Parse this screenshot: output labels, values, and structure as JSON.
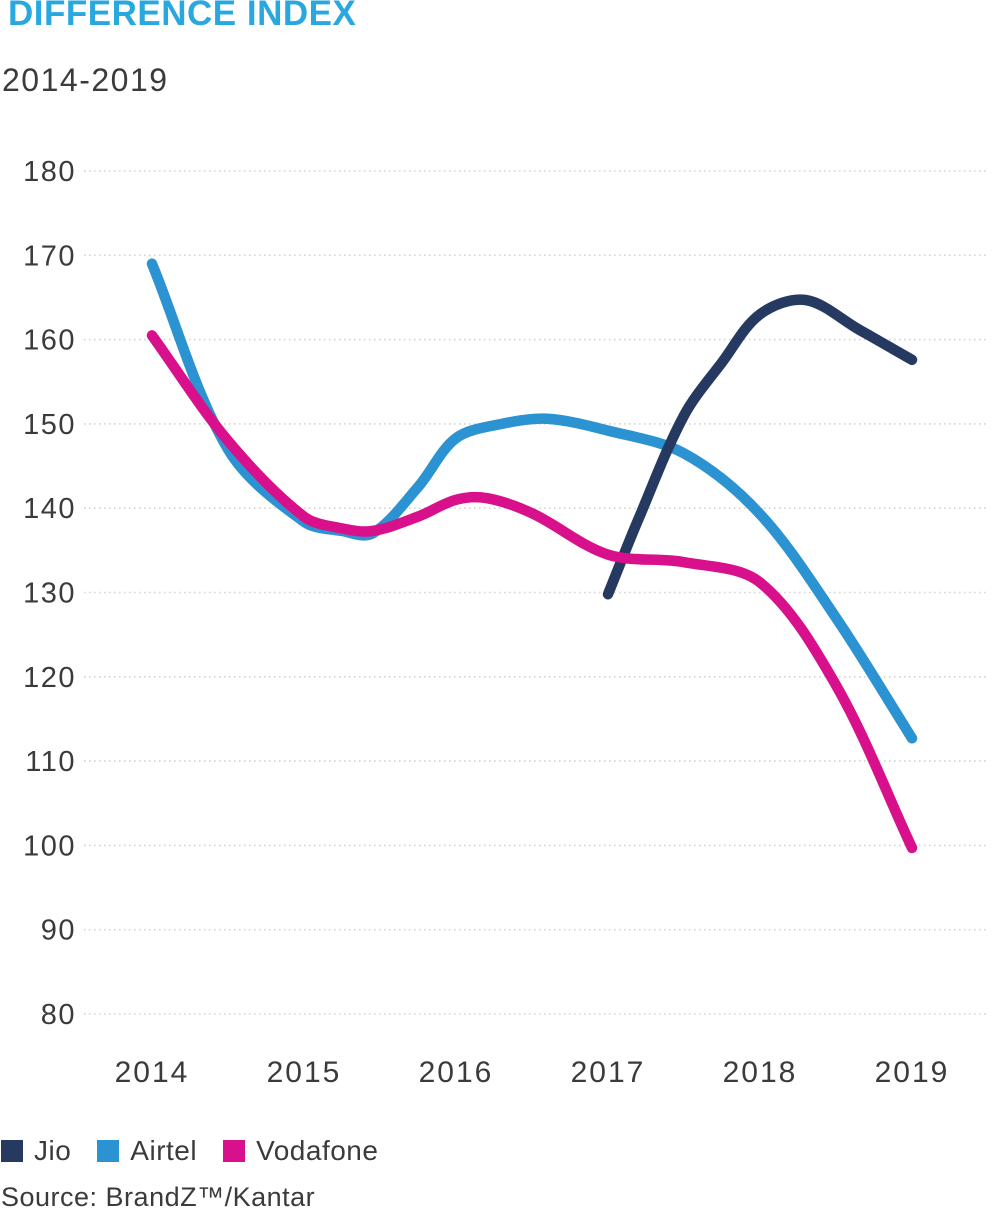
{
  "header": {
    "title": "DIFFERENCE INDEX",
    "subtitle": "2014-2019"
  },
  "source_note": "Source: BrandZ™/Kantar",
  "colors": {
    "title": "#29a8e0",
    "text": "#3b3b3a",
    "gridline": "#d4d4d4",
    "jio": "#253961",
    "airtel": "#2b93d1",
    "vodafone": "#d8108c"
  },
  "chart_data": {
    "type": "line",
    "title": "DIFFERENCE INDEX",
    "period": "2014-2019",
    "x_ticks": [
      "2014",
      "2015",
      "2016",
      "2017",
      "2018",
      "2019"
    ],
    "y_ticks": [
      180,
      170,
      160,
      150,
      140,
      130,
      120,
      110,
      100,
      90,
      80
    ],
    "ylim": [
      80,
      180
    ],
    "xlim": [
      2014,
      2019
    ],
    "grid": "horizontal dotted",
    "legend_position": "bottom left",
    "series": [
      {
        "name": "Jio",
        "color": "#253961",
        "yearly": {
          "2017": 130,
          "2018": 163,
          "2019": 157.5
        },
        "curve_points": [
          [
            2017,
            129.8
          ],
          [
            2017.2,
            138.7
          ],
          [
            2017.5,
            151
          ],
          [
            2017.75,
            157.3
          ],
          [
            2018,
            163
          ],
          [
            2018.3,
            164.7
          ],
          [
            2018.65,
            161.2
          ],
          [
            2019,
            157.6
          ]
        ]
      },
      {
        "name": "Airtel",
        "color": "#2b93d1",
        "yearly": {
          "2014": 169,
          "2015": 138.5,
          "2016": 148.5,
          "2017": 149,
          "2018": 139.5,
          "2019": 112.5
        },
        "curve_points": [
          [
            2014,
            169
          ],
          [
            2014.5,
            147
          ],
          [
            2015,
            138.4
          ],
          [
            2015.25,
            137.3
          ],
          [
            2015.45,
            137
          ],
          [
            2015.75,
            142.5
          ],
          [
            2016,
            148.3
          ],
          [
            2016.3,
            150
          ],
          [
            2016.6,
            150.6
          ],
          [
            2017,
            149.2
          ],
          [
            2017.5,
            146.5
          ],
          [
            2018,
            139.3
          ],
          [
            2018.5,
            127
          ],
          [
            2019,
            112.7
          ]
        ]
      },
      {
        "name": "Vodafone",
        "color": "#d8108c",
        "yearly": {
          "2014": 160.5,
          "2015": 139,
          "2016": 141,
          "2017": 134.5,
          "2018": 131,
          "2019": 99.5
        },
        "curve_points": [
          [
            2014,
            160.5
          ],
          [
            2014.5,
            148
          ],
          [
            2015,
            139
          ],
          [
            2015.25,
            137.6
          ],
          [
            2015.45,
            137.3
          ],
          [
            2015.75,
            139
          ],
          [
            2016,
            141
          ],
          [
            2016.2,
            141.2
          ],
          [
            2016.5,
            139.4
          ],
          [
            2017,
            134.5
          ],
          [
            2017.5,
            133.6
          ],
          [
            2018,
            131.2
          ],
          [
            2018.5,
            119
          ],
          [
            2019,
            99.7
          ]
        ]
      }
    ]
  }
}
